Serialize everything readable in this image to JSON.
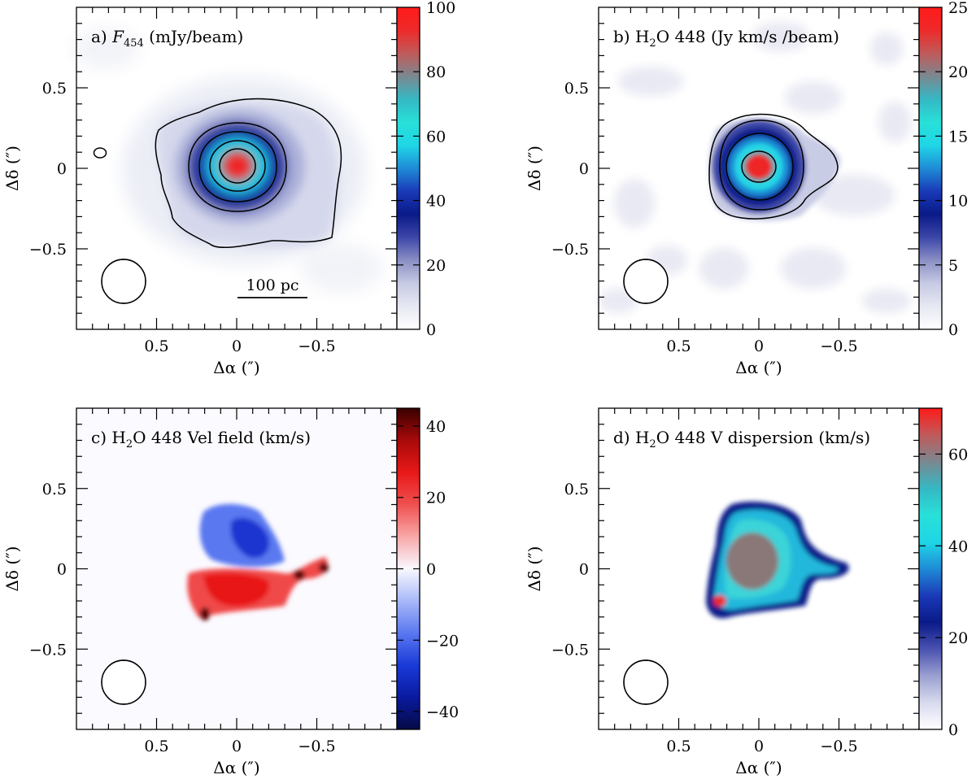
{
  "figure": {
    "xlabel": "Δα (″)",
    "ylabel": "Δδ (″)",
    "panels": [
      {
        "id": "a",
        "title_prefix": "a) ",
        "title_symbol": "F",
        "title_sub": "454",
        "title_suffix": " (mJy/beam)",
        "colorbar": {
          "min": 0,
          "max": 100,
          "ticks": [
            0,
            20,
            40,
            60,
            80,
            100
          ],
          "labels": [
            "0",
            "20",
            "40",
            "60",
            "80",
            "100"
          ],
          "colors": [
            "#ffffff",
            "#e6e8f2",
            "#c7cae3",
            "#8a8fc4",
            "#3c46a8",
            "#0a1a88",
            "#1a3ab8",
            "#1f8bd6",
            "#1fd6e6",
            "#28e0d8",
            "#35b8c4",
            "#7a8890",
            "#c05a5a",
            "#ee2a2a",
            "#ff1a1a"
          ]
        },
        "scale_bar": "100 pc",
        "type": "map"
      },
      {
        "id": "b",
        "title_prefix": "b) H",
        "title_sub": "2",
        "title_suffix": "O 448 (Jy km/s /beam)",
        "colorbar": {
          "min": 0,
          "max": 25,
          "ticks": [
            0,
            5,
            10,
            15,
            20,
            25
          ],
          "labels": [
            "0",
            "5",
            "10",
            "15",
            "20",
            "25"
          ],
          "colors": [
            "#ffffff",
            "#e6e8f2",
            "#c7cae3",
            "#8a8fc4",
            "#3c46a8",
            "#0a1a88",
            "#1a3ab8",
            "#1f8bd6",
            "#1fd6e6",
            "#28e0d8",
            "#35b8c4",
            "#7a8890",
            "#c05a5a",
            "#ee2a2a",
            "#ff1a1a"
          ]
        },
        "type": "map"
      },
      {
        "id": "c",
        "title_prefix": "c) H",
        "title_sub": "2",
        "title_suffix": "O 448 Vel field (km/s)",
        "colorbar": {
          "min": -45,
          "max": 45,
          "ticks": [
            -40,
            -20,
            0,
            20,
            40
          ],
          "labels": [
            "−40",
            "−20",
            "0",
            "20",
            "40"
          ],
          "colors": [
            "#050a45",
            "#0a1aa0",
            "#1a3ad8",
            "#5a78f0",
            "#a8b8f8",
            "#f8f8ff",
            "#f8a8a8",
            "#f05050",
            "#e81818",
            "#a80a0a",
            "#3a0000"
          ]
        },
        "type": "velocity"
      },
      {
        "id": "d",
        "title_prefix": "d) H",
        "title_sub": "2",
        "title_suffix": "O 448 V dispersion (km/s)",
        "colorbar": {
          "min": 0,
          "max": 70,
          "ticks": [
            0,
            20,
            40,
            60
          ],
          "labels": [
            "0",
            "20",
            "40",
            "60"
          ],
          "colors": [
            "#ffffff",
            "#d8daee",
            "#9aa0d0",
            "#4a52b0",
            "#0a1a88",
            "#1a3ab8",
            "#1f8bd6",
            "#1fd6e6",
            "#28e0d8",
            "#35b8c4",
            "#7a8890",
            "#c05a5a",
            "#ff1a1a"
          ]
        },
        "type": "dispersion"
      }
    ],
    "x_ticks": [
      0.5,
      0,
      -0.5
    ],
    "x_tick_labels": [
      "0.5",
      "0",
      "−0.5"
    ],
    "y_ticks": [
      0.5,
      0,
      -0.5
    ],
    "y_tick_labels": [
      "0.5",
      "0",
      "−0.5"
    ]
  },
  "chart_data": [
    {
      "type": "heatmap",
      "title": "a) F454 (mJy/beam)",
      "xlabel": "Δα (″)",
      "ylabel": "Δδ (″)",
      "xlim": [
        1.0,
        -1.0
      ],
      "ylim": [
        -1.0,
        1.0
      ],
      "colorbar_range": [
        0,
        100
      ],
      "peak": {
        "x": 0.0,
        "y": 0.0,
        "value": 100
      },
      "contours": "yes",
      "scale_bar": "100 pc"
    },
    {
      "type": "heatmap",
      "title": "b) H2O 448 (Jy km/s /beam)",
      "xlabel": "Δα (″)",
      "ylabel": "Δδ (″)",
      "xlim": [
        1.0,
        -1.0
      ],
      "ylim": [
        -1.0,
        1.0
      ],
      "colorbar_range": [
        0,
        25
      ],
      "peak": {
        "x": 0.0,
        "y": 0.0,
        "value": 25
      },
      "contours": "yes"
    },
    {
      "type": "heatmap",
      "title": "c) H2O 448 Vel field (km/s)",
      "xlabel": "Δα (″)",
      "ylabel": "Δδ (″)",
      "xlim": [
        1.0,
        -1.0
      ],
      "ylim": [
        -1.0,
        1.0
      ],
      "colorbar_range": [
        -45,
        45
      ],
      "north_side": "blueshifted",
      "south_side": "redshifted"
    },
    {
      "type": "heatmap",
      "title": "d) H2O 448 V dispersion (km/s)",
      "xlabel": "Δα (″)",
      "ylabel": "Δδ (″)",
      "xlim": [
        1.0,
        -1.0
      ],
      "ylim": [
        -1.0,
        1.0
      ],
      "colorbar_range": [
        0,
        70
      ],
      "peak_dispersion": 70
    }
  ]
}
